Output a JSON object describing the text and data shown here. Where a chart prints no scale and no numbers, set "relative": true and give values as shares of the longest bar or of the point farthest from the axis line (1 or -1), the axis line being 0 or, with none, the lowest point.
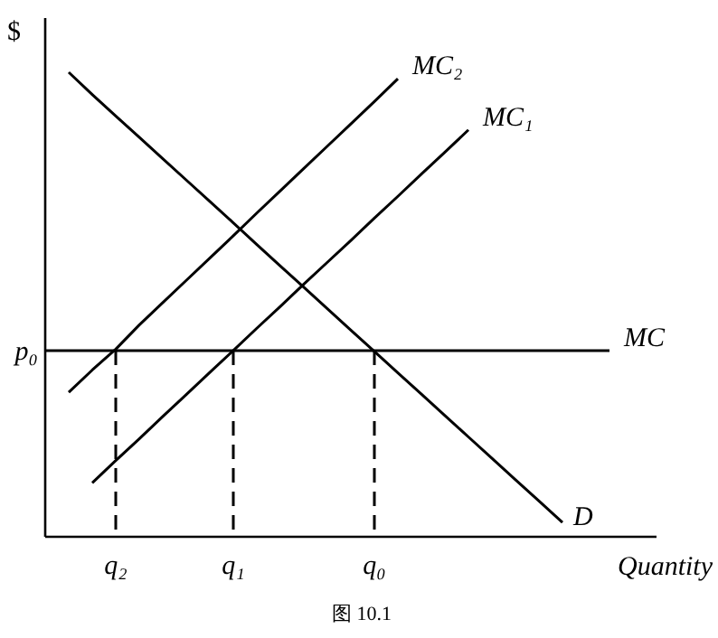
{
  "chart_data": {
    "type": "line",
    "relative": true,
    "xlabel": "Quantity",
    "ylabel": "$",
    "categories": [
      null,
      null,
      null,
      "q₂",
      null,
      null,
      null,
      null,
      "q₁",
      null,
      null,
      null,
      null,
      null,
      "q₀",
      null,
      null,
      null,
      null,
      null,
      null,
      null,
      null,
      null,
      null,
      null,
      null
    ],
    "series": [
      {
        "name": "D",
        "color": "#000000",
        "values": [
          null,
          1.0,
          0.952,
          0.906,
          0.86,
          0.814,
          0.768,
          0.722,
          0.676,
          0.629,
          0.583,
          0.537,
          0.491,
          0.445,
          0.399,
          0.353,
          0.307,
          0.261,
          0.215,
          0.169,
          0.123,
          0.077,
          0.031,
          null,
          null,
          null,
          null
        ]
      },
      {
        "name": "MC",
        "color": "#000000",
        "values": [
          0.401,
          0.401,
          0.401,
          0.401,
          0.401,
          0.401,
          0.401,
          0.401,
          0.401,
          0.401,
          0.401,
          0.401,
          0.401,
          0.401,
          0.401,
          0.401,
          0.401,
          0.401,
          0.401,
          0.401,
          0.401,
          0.401,
          0.401,
          0.401,
          0.401,
          null,
          null
        ]
      },
      {
        "name": "MC₁",
        "color": "#000000",
        "values": [
          null,
          null,
          0.116,
          0.164,
          0.211,
          0.259,
          0.306,
          0.354,
          0.401,
          0.449,
          0.496,
          0.544,
          0.591,
          0.638,
          0.686,
          0.733,
          0.781,
          0.828,
          0.876,
          null,
          null,
          null,
          null,
          null,
          null,
          null,
          null
        ]
      },
      {
        "name": "MC₂",
        "color": "#000000",
        "values": [
          null,
          0.311,
          0.359,
          0.404,
          0.456,
          0.504,
          0.552,
          0.6,
          0.648,
          0.697,
          0.745,
          0.793,
          0.841,
          0.889,
          0.937,
          0.986,
          null,
          null,
          null,
          null,
          null,
          null,
          null,
          null,
          null,
          null,
          null
        ]
      },
      {
        "color": "#000000",
        "line_style": "dashed",
        "x": [
          "q₂",
          "q₂"
        ],
        "values": [
          0.401,
          0
        ]
      },
      {
        "color": "#000000",
        "line_style": "dashed",
        "x": [
          "q₁",
          "q₁"
        ],
        "values": [
          0.401,
          0
        ]
      },
      {
        "color": "#000000",
        "line_style": "dashed",
        "x": [
          "q₀",
          "q₀"
        ],
        "values": [
          0.401,
          0
        ]
      }
    ],
    "annotations": [
      "p₀",
      "图 10.1"
    ]
  }
}
